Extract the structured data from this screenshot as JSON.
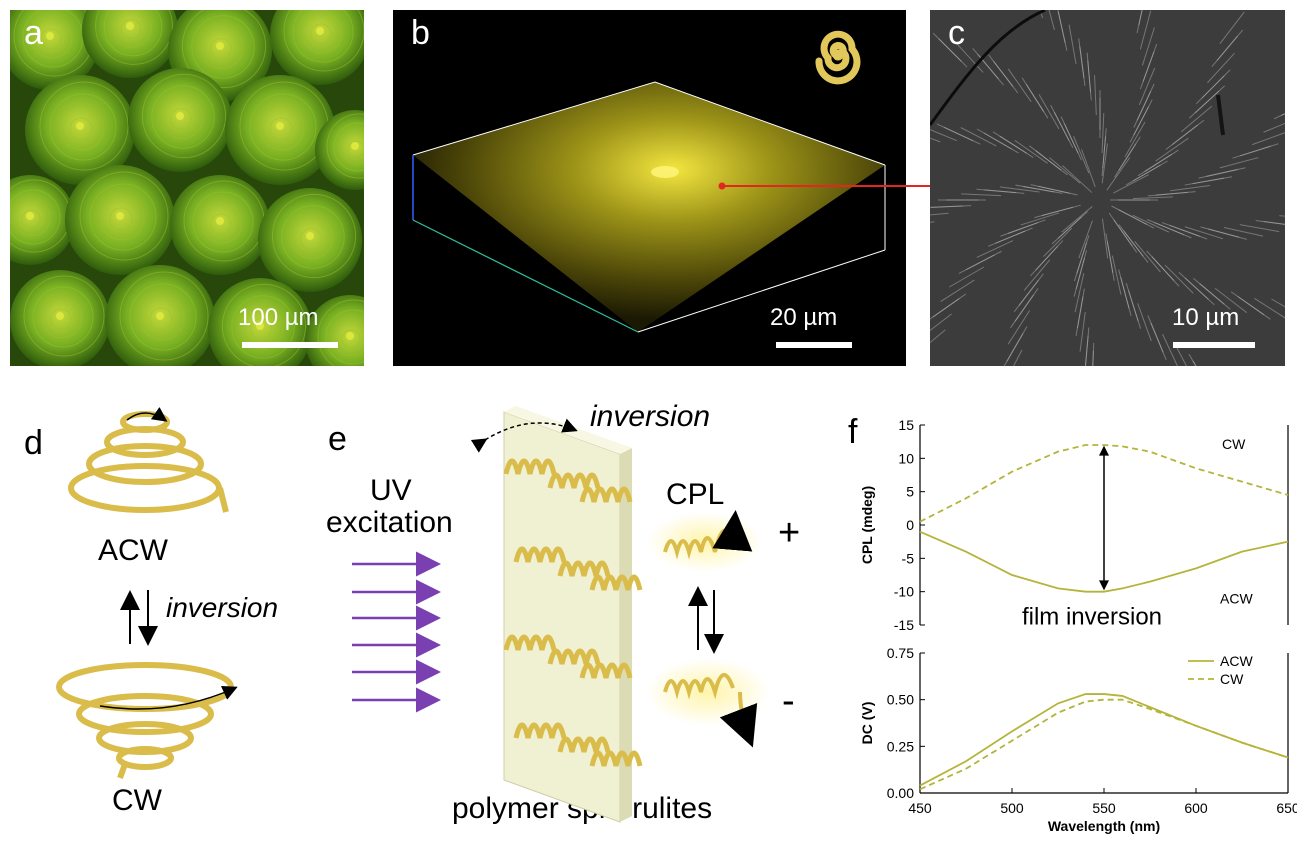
{
  "panels": {
    "a": {
      "label": "a",
      "scale": "100 µm"
    },
    "b": {
      "label": "b",
      "scale": "20 µm"
    },
    "c": {
      "label": "c",
      "scale": "10 µm"
    },
    "d": {
      "label": "d",
      "top": "ACW",
      "middle": "inversion",
      "bottom": "CW"
    },
    "e": {
      "label": "e",
      "uv_line1": "UV",
      "uv_line2": "excitation",
      "top": "inversion",
      "cpl": "CPL",
      "plus": "+",
      "minus": "-",
      "bottom": "polymer spherulites"
    },
    "f": {
      "label": "f"
    }
  },
  "colors": {
    "micrograph_green": "#5f9a1e",
    "confocal_yellow": "#d8cc2a",
    "helix_gold": "#e2c85a",
    "uv_arrow": "#7a3fb0",
    "curve": "#b5b43a",
    "arrow_red": "#e3261e"
  },
  "chart_data": [
    {
      "type": "line",
      "ylabel": "CPL (mdeg)",
      "ylim": [
        -15,
        15
      ],
      "yticks": [
        "15",
        "10",
        "5",
        "0",
        "-5",
        "-10",
        "-15"
      ],
      "xlim": [
        450,
        650
      ],
      "annotation": "film inversion",
      "series": [
        {
          "name": "CW",
          "style": "dashed",
          "x": [
            450,
            475,
            500,
            525,
            540,
            550,
            560,
            575,
            600,
            625,
            650
          ],
          "y": [
            0.5,
            4,
            8,
            11,
            12,
            12,
            11.8,
            11,
            8.5,
            6.5,
            4.5
          ]
        },
        {
          "name": "ACW",
          "style": "solid",
          "x": [
            450,
            475,
            500,
            525,
            540,
            550,
            560,
            575,
            600,
            625,
            650
          ],
          "y": [
            -1,
            -4,
            -7.5,
            -9.5,
            -10,
            -10,
            -9.5,
            -8.5,
            -6.5,
            -4,
            -2.5
          ]
        }
      ]
    },
    {
      "type": "line",
      "ylabel": "DC (V)",
      "xlabel": "Wavelength (nm)",
      "ylim": [
        0,
        0.75
      ],
      "yticks": [
        "0.75",
        "0.50",
        "0.25",
        "0.00"
      ],
      "xlim": [
        450,
        650
      ],
      "xticks": [
        "450",
        "500",
        "550",
        "600",
        "650"
      ],
      "legend": "top-right",
      "series": [
        {
          "name": "ACW",
          "style": "solid",
          "x": [
            450,
            475,
            500,
            525,
            540,
            550,
            560,
            575,
            600,
            625,
            650
          ],
          "y": [
            0.04,
            0.17,
            0.33,
            0.48,
            0.53,
            0.53,
            0.52,
            0.46,
            0.36,
            0.27,
            0.19
          ]
        },
        {
          "name": "CW",
          "style": "dashed",
          "x": [
            450,
            475,
            500,
            525,
            540,
            550,
            560,
            575,
            600,
            625,
            650
          ],
          "y": [
            0.02,
            0.13,
            0.28,
            0.43,
            0.49,
            0.5,
            0.5,
            0.45,
            0.36,
            0.27,
            0.19
          ]
        }
      ]
    }
  ]
}
